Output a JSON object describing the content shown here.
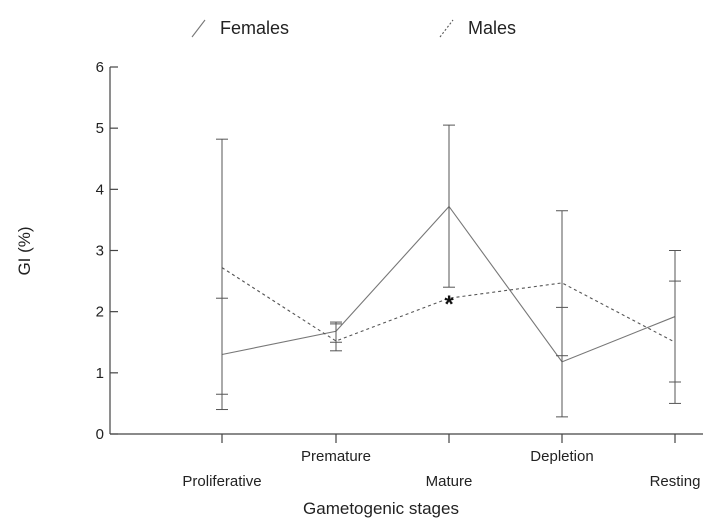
{
  "chart_data": {
    "type": "line",
    "title": "",
    "xlabel": "Gametogenic stages",
    "ylabel": "GI (%)",
    "categories": [
      "Proliferative",
      "Premature",
      "Mature",
      "Depletion",
      "Resting"
    ],
    "ylim": [
      0,
      6
    ],
    "yticks": [
      "0",
      "1",
      "2",
      "3",
      "4",
      "5",
      "6"
    ],
    "grid": false,
    "legend": "top",
    "series": [
      {
        "name": "Females",
        "style": "solid",
        "color": "#777777",
        "values": [
          1.3,
          1.68,
          3.72,
          1.18,
          1.92
        ],
        "error_low": [
          0.4,
          1.5,
          2.4,
          0.28,
          0.85
        ],
        "error_high": [
          2.22,
          1.8,
          5.05,
          2.07,
          3.0
        ]
      },
      {
        "name": "Males",
        "style": "dotted",
        "color": "#555555",
        "values": [
          2.72,
          1.52,
          2.22,
          2.47,
          1.5
        ],
        "error_low": [
          0.65,
          1.36,
          2.22,
          1.28,
          0.5
        ],
        "error_high": [
          4.82,
          1.83,
          2.22,
          3.65,
          2.5
        ]
      }
    ],
    "annotations": [
      {
        "text": "*",
        "category": "Mature",
        "y": 2.22
      }
    ]
  }
}
